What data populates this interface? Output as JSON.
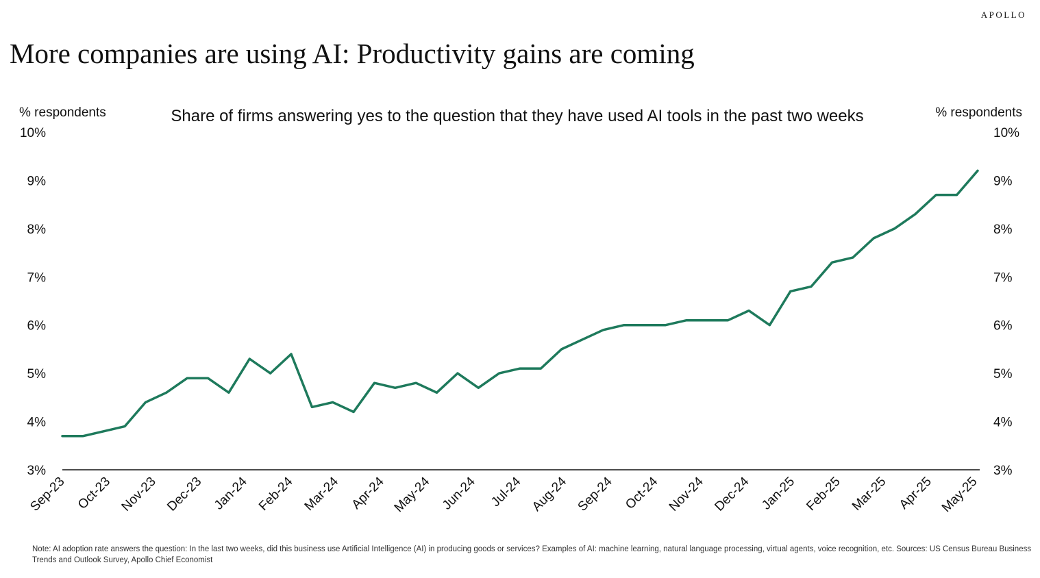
{
  "brand": "APOLLO",
  "title": "More companies are using AI: Productivity gains are coming",
  "subtitle": "Share of firms answering yes to the question that they have used AI tools in the past two weeks",
  "note": "Note: AI adoption rate answers the question: In the last two weeks, did this business use Artificial Intelligence (AI) in producing goods or services? Examples of AI: machine learning, natural language processing, virtual agents, voice recognition, etc. Sources: US Census Bureau Business Trends and Outlook Survey, Apollo Chief Economist",
  "colors": {
    "line": "#1e7a5c",
    "axis": "#111111"
  },
  "chart_data": {
    "type": "line",
    "title": "Share of firms answering yes to the question that they have used AI tools in the past two weeks",
    "ylabel_left": "% respondents",
    "ylabel_right": "% respondents",
    "ylim": [
      3,
      10
    ],
    "yticks": [
      3,
      4,
      5,
      6,
      7,
      8,
      9,
      10
    ],
    "ytick_labels": [
      "3%",
      "4%",
      "5%",
      "6%",
      "7%",
      "8%",
      "9%",
      "10%"
    ],
    "xtick_labels": [
      "Sep-23",
      "Oct-23",
      "Nov-23",
      "Dec-23",
      "Jan-24",
      "Feb-24",
      "Mar-24",
      "Apr-24",
      "May-24",
      "Jun-24",
      "Jul-24",
      "Aug-24",
      "Sep-24",
      "Oct-24",
      "Nov-24",
      "Dec-24",
      "Jan-25",
      "Feb-25",
      "Mar-25",
      "Apr-25",
      "May-25"
    ],
    "grid": false,
    "series": [
      {
        "values": [
          3.7,
          3.7,
          3.8,
          3.9,
          4.4,
          4.6,
          4.9,
          4.9,
          4.6,
          5.3,
          5.0,
          5.4,
          4.3,
          4.4,
          4.2,
          4.8,
          4.7,
          4.8,
          4.6,
          5.0,
          4.7,
          5.0,
          5.1,
          5.1,
          5.5,
          5.7,
          5.9,
          6.0,
          6.0,
          6.0,
          6.1,
          6.1,
          6.1,
          6.3,
          6.0,
          6.7,
          6.8,
          7.3,
          7.4,
          7.8,
          8.0,
          8.3,
          8.7,
          8.7,
          9.2
        ]
      }
    ]
  }
}
